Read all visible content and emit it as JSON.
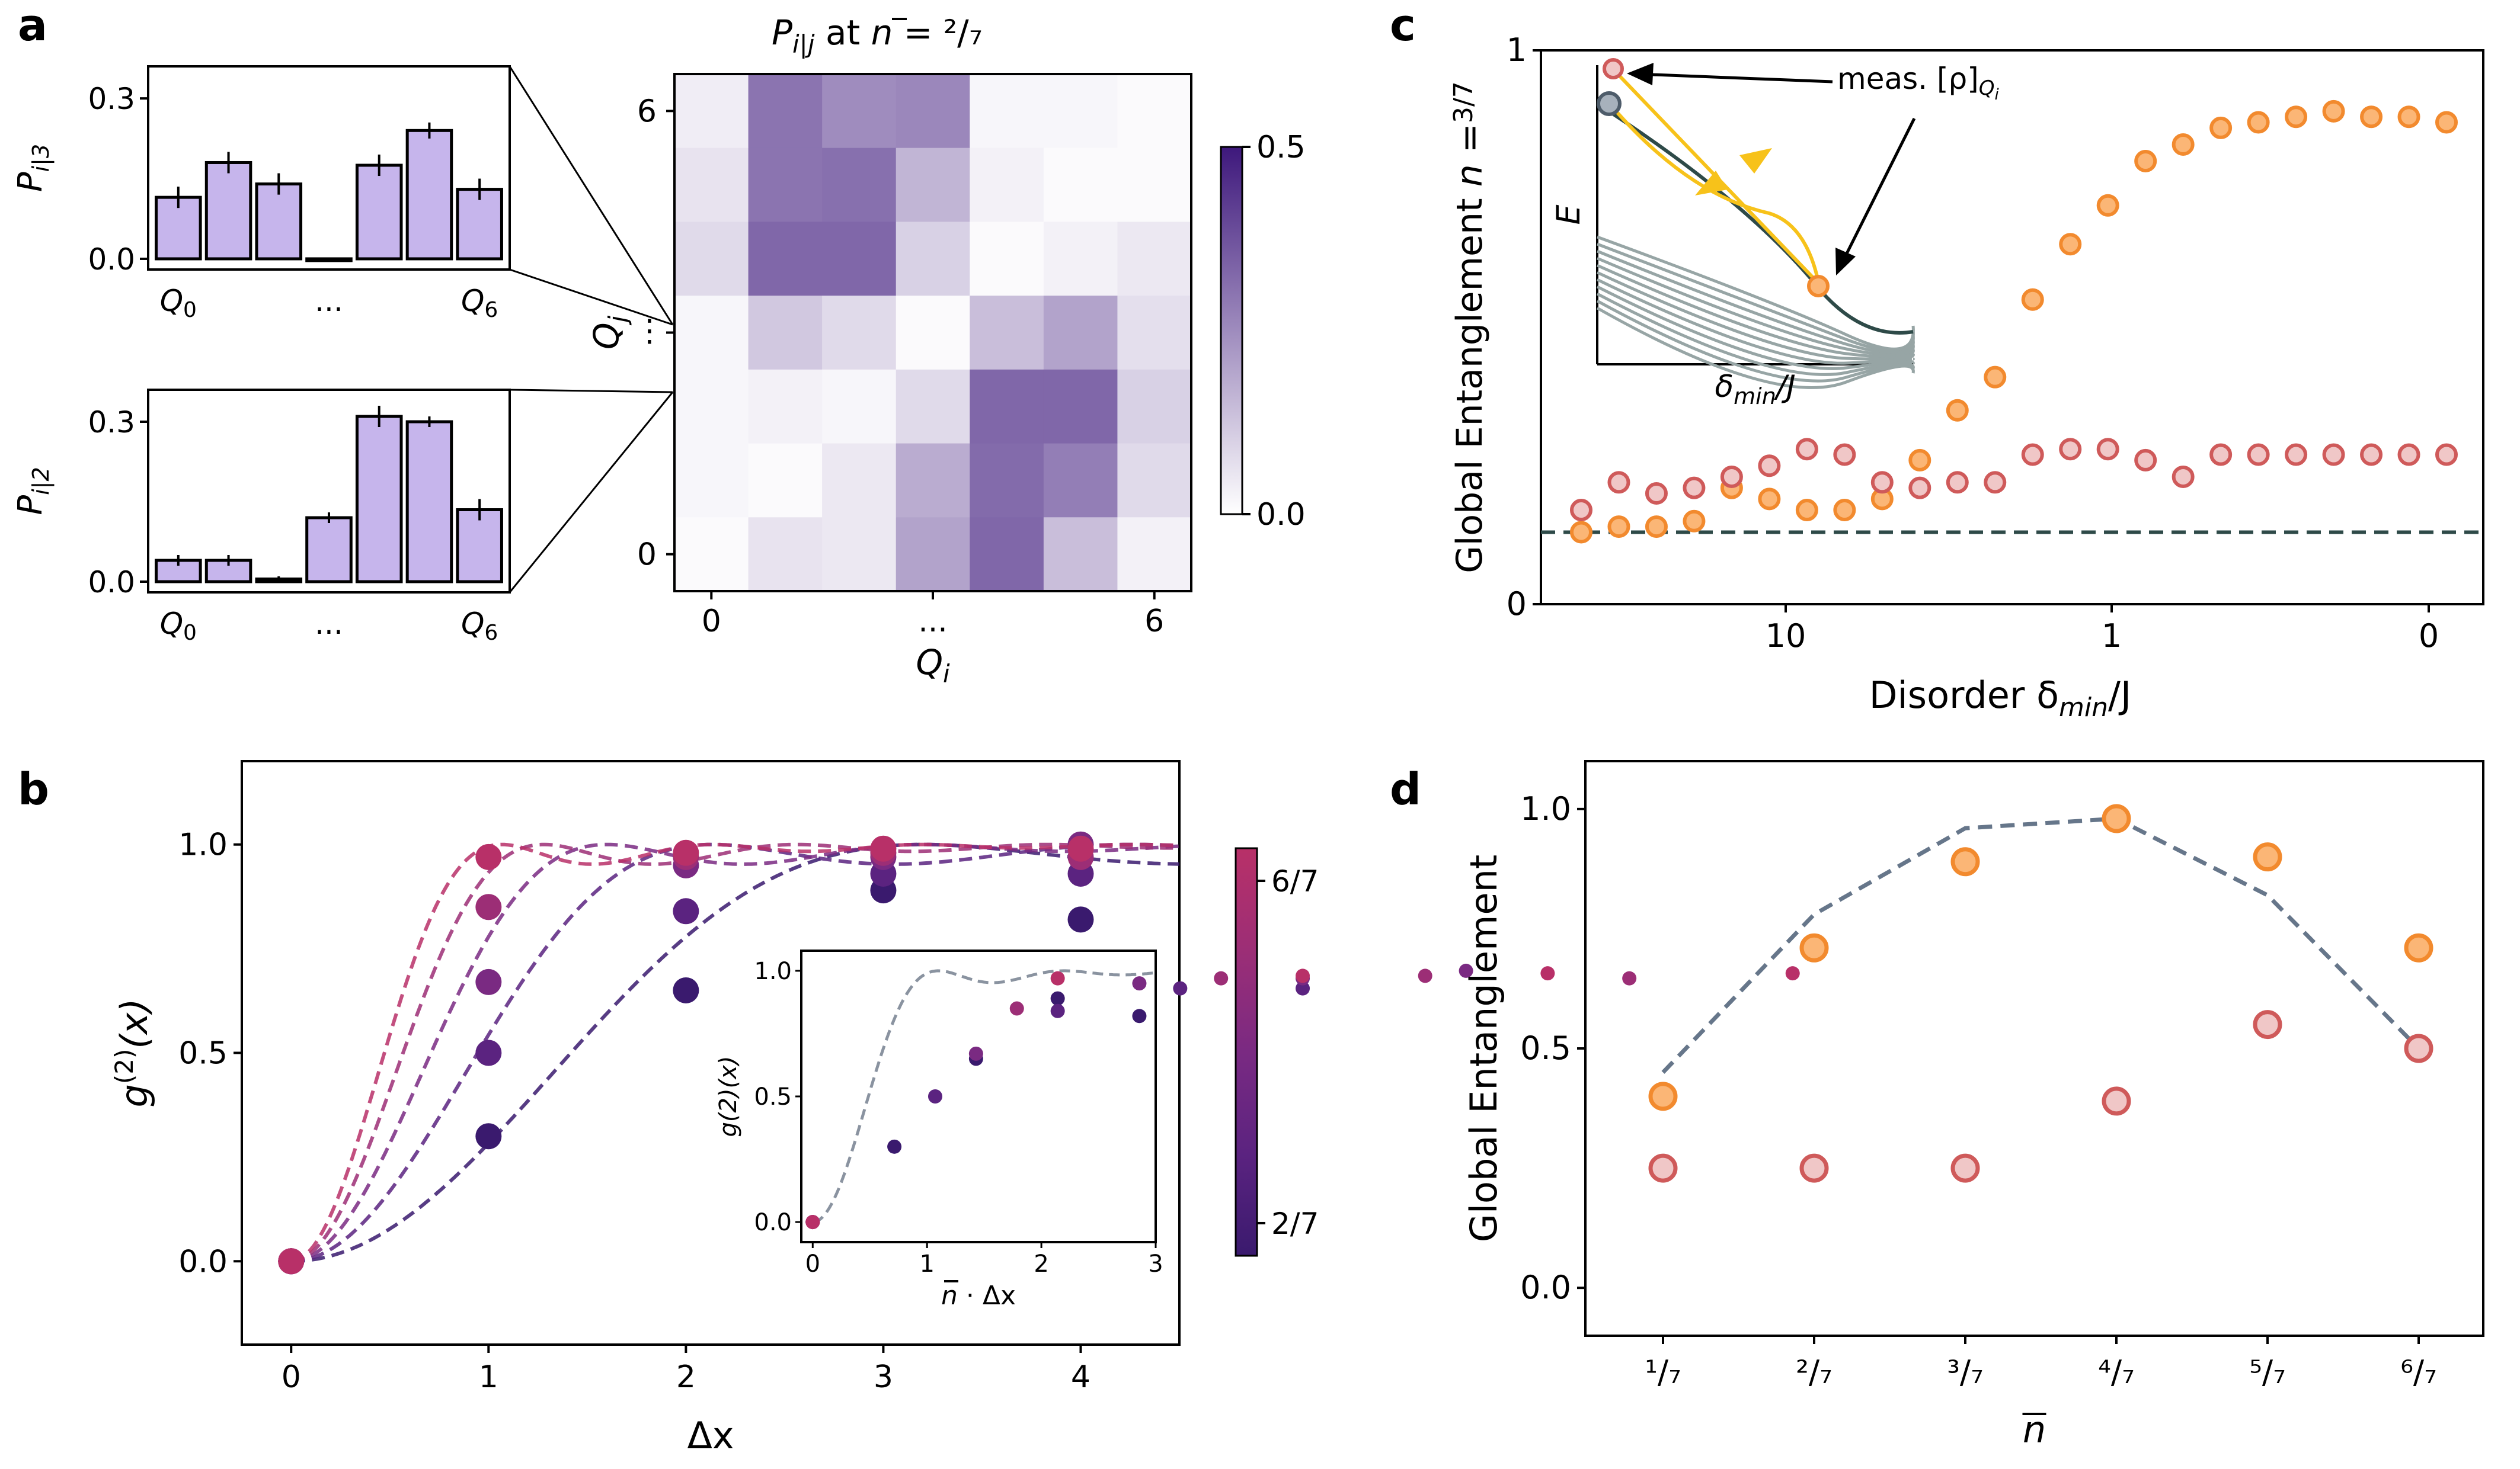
{
  "panels": {
    "a": {
      "label": "a"
    },
    "b": {
      "label": "b"
    },
    "c": {
      "label": "c"
    },
    "d": {
      "label": "d"
    }
  },
  "chart_data": [
    {
      "id": "a_bar_top",
      "type": "bar",
      "ylabel_main": "P",
      "ylabel_sub": "i|3",
      "yticks": [
        "0.0",
        "0.3"
      ],
      "ylim": [
        -0.02,
        0.36
      ],
      "xtick_left_main": "Q",
      "xtick_left_sub": "0",
      "xtick_mid": "...",
      "xtick_right_main": "Q",
      "xtick_right_sub": "6",
      "values": [
        0.115,
        0.18,
        0.14,
        0.0,
        0.175,
        0.24,
        0.13
      ],
      "errors": [
        0.02,
        0.02,
        0.02,
        0.0,
        0.02,
        0.015,
        0.02
      ],
      "color": "#c6b5ec"
    },
    {
      "id": "a_bar_bottom",
      "type": "bar",
      "ylabel_main": "P",
      "ylabel_sub": "i|2",
      "yticks": [
        "0.0",
        "0.3"
      ],
      "ylim": [
        -0.02,
        0.36
      ],
      "xtick_left_main": "Q",
      "xtick_left_sub": "0",
      "xtick_mid": "...",
      "xtick_right_main": "Q",
      "xtick_right_sub": "6",
      "values": [
        0.04,
        0.04,
        0.005,
        0.12,
        0.31,
        0.3,
        0.135
      ],
      "errors": [
        0.01,
        0.01,
        0.005,
        0.01,
        0.02,
        0.01,
        0.02
      ],
      "color": "#c6b5ec"
    },
    {
      "id": "a_heatmap",
      "type": "heatmap",
      "title_main": "P",
      "title_sub": "i|j",
      "title_rest": "at",
      "title_nbar": "n",
      "title_eq": "= ²/₇",
      "xlabel_main": "Q",
      "xlabel_sub": "i",
      "ylabel_main": "Q",
      "ylabel_sub": "j",
      "xticks": [
        "0",
        "...",
        "6"
      ],
      "yticks": [
        "0",
        "...",
        "6"
      ],
      "colorbar_ticks": [
        "0.0",
        "0.5"
      ],
      "vmin": 0.0,
      "vmax": 0.5,
      "matrix_rows_top_to_bottom": [
        [
          0.04,
          0.3,
          0.25,
          0.26,
          0.02,
          0.02,
          0.01
        ],
        [
          0.06,
          0.3,
          0.31,
          0.16,
          0.03,
          0.01,
          0.01
        ],
        [
          0.08,
          0.33,
          0.33,
          0.1,
          0.01,
          0.03,
          0.05
        ],
        [
          0.02,
          0.12,
          0.08,
          0.01,
          0.14,
          0.2,
          0.07
        ],
        [
          0.02,
          0.03,
          0.02,
          0.08,
          0.33,
          0.33,
          0.1
        ],
        [
          0.02,
          0.01,
          0.05,
          0.18,
          0.32,
          0.28,
          0.08
        ],
        [
          0.01,
          0.06,
          0.05,
          0.2,
          0.33,
          0.14,
          0.03
        ]
      ]
    },
    {
      "id": "b",
      "type": "scatter",
      "xlabel": "Δx",
      "ylabel_main": "g",
      "ylabel_sup": "(2)",
      "ylabel_rest": "(x)",
      "xticks": [
        0,
        1,
        2,
        3,
        4
      ],
      "yticks": [
        "0.0",
        "0.5",
        "1.0"
      ],
      "xlim": [
        -0.25,
        4.5
      ],
      "ylim": [
        -0.2,
        1.2
      ],
      "colorbar_ticks": [
        "6/7",
        "2/7"
      ],
      "series": [
        {
          "name": "2/7",
          "color": "#3a1a6e",
          "x": [
            0,
            1,
            2,
            3,
            4
          ],
          "y": [
            0.0,
            0.3,
            0.65,
            0.89,
            0.82
          ],
          "curve_scale": 1.0
        },
        {
          "name": "3/7",
          "color": "#5b2380",
          "x": [
            0,
            1,
            2,
            3,
            4
          ],
          "y": [
            0.0,
            0.5,
            0.84,
            0.93,
            0.93
          ],
          "curve_scale": 1.5
        },
        {
          "name": "4/7",
          "color": "#7a2a82",
          "x": [
            0,
            1,
            2,
            3,
            4
          ],
          "y": [
            0.0,
            0.67,
            0.95,
            0.97,
            1.0
          ],
          "curve_scale": 2.0
        },
        {
          "name": "5/7",
          "color": "#9c2e76",
          "x": [
            0,
            1,
            2,
            3,
            4
          ],
          "y": [
            0.0,
            0.85,
            0.97,
            0.98,
            0.97
          ],
          "curve_scale": 2.5
        },
        {
          "name": "6/7",
          "color": "#b83068",
          "x": [
            0,
            1,
            2,
            3,
            4
          ],
          "y": [
            0.0,
            0.97,
            0.98,
            0.99,
            0.99
          ],
          "curve_scale": 3.0
        }
      ],
      "inset": {
        "xlabel_nbar": "n",
        "xlabel_rest": "· Δx",
        "ylabel": "g(2)(x)",
        "xticks": [
          0,
          1,
          2,
          3
        ],
        "yticks": [
          "0.0",
          "0.5",
          "1.0"
        ],
        "xlim": [
          -0.1,
          3.0
        ],
        "ylim": [
          -0.08,
          1.08
        ]
      }
    },
    {
      "id": "c",
      "type": "scatter",
      "xlabel": "Disorder δ",
      "xlabel_sub": "min",
      "xlabel_rest": "/J",
      "ylabel_main": "Global Entanglement",
      "ylabel_nbar": "n",
      "ylabel_eq": "=",
      "ylabel_frac": "3/7",
      "xticks": [
        "10",
        "1",
        "0"
      ],
      "yticks": [
        "0",
        "1"
      ],
      "baseline": 0.13,
      "baseline_color": "#2e4a48",
      "series": [
        {
          "name": "orange",
          "color_fill": "#fbb676",
          "color_edge": "#f28a2e",
          "y": [
            0.13,
            0.14,
            0.14,
            0.15,
            0.21,
            0.19,
            0.17,
            0.17,
            0.19,
            0.26,
            0.35,
            0.41,
            0.55,
            0.65,
            0.72,
            0.8,
            0.83,
            0.86,
            0.87,
            0.88,
            0.89,
            0.88,
            0.88,
            0.87
          ]
        },
        {
          "name": "red",
          "color_fill": "#f0c7c7",
          "color_edge": "#cf5a5a",
          "y": [
            0.17,
            0.22,
            0.2,
            0.21,
            0.23,
            0.25,
            0.28,
            0.27,
            0.22,
            0.21,
            0.22,
            0.22,
            0.27,
            0.28,
            0.28,
            0.26,
            0.23,
            0.27,
            0.27,
            0.27,
            0.27,
            0.27,
            0.27,
            0.27
          ]
        }
      ],
      "inset": {
        "ylabel": "E",
        "xlabel_main": "δ",
        "xlabel_sub": "min",
        "xlabel_rest": "/J",
        "annotation_main": "meas. [ρ]",
        "annotation_sub": "Q",
        "annotation_subsub": "i"
      }
    },
    {
      "id": "d",
      "type": "scatter",
      "xlabel": "n",
      "ylabel": "Global Entanglement",
      "categories": [
        "1/7",
        "2/7",
        "3/7",
        "4/7",
        "5/7",
        "6/7"
      ],
      "xtick_labels": [
        "¹/₇",
        "²/₇",
        "³/₇",
        "⁴/₇",
        "⁵/₇",
        "⁶/₇"
      ],
      "yticks": [
        "0.0",
        "0.5",
        "1.0"
      ],
      "ylim": [
        -0.1,
        1.1
      ],
      "series": [
        {
          "name": "orange",
          "color_fill": "#fbb676",
          "color_edge": "#f28a2e",
          "values": [
            0.4,
            0.71,
            0.89,
            0.98,
            0.9,
            0.71
          ]
        },
        {
          "name": "red",
          "color_fill": "#f0c7c7",
          "color_edge": "#cf5a5a",
          "values": [
            0.25,
            0.25,
            0.25,
            0.39,
            0.55,
            0.5
          ]
        },
        {
          "name": "dashed",
          "color": "#66768a",
          "values": [
            0.45,
            0.78,
            0.96,
            0.98,
            0.82,
            0.5
          ]
        }
      ]
    }
  ]
}
